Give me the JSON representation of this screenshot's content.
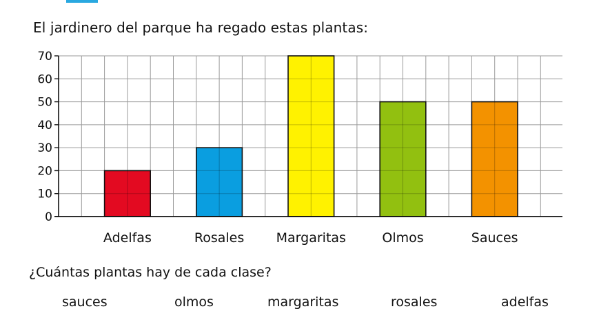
{
  "exercise": {
    "intro": "El jardinero del parque ha regado estas plantas:",
    "question": "¿Cuántas plantas hay de cada clase?",
    "answer_words": [
      "sauces",
      "olmos",
      "margaritas",
      "rosales",
      "adelfas"
    ]
  },
  "chart_data": {
    "type": "bar",
    "categories": [
      "Adelfas",
      "Rosales",
      "Margaritas",
      "Olmos",
      "Sauces"
    ],
    "values": [
      20,
      30,
      70,
      50,
      50
    ],
    "colors": [
      "#e30a21",
      "#0a9ee0",
      "#fff200",
      "#92c010",
      "#f39200"
    ],
    "yticks": [
      0,
      10,
      20,
      30,
      40,
      50,
      60,
      70
    ],
    "ylim": [
      0,
      70
    ],
    "grid": true
  }
}
